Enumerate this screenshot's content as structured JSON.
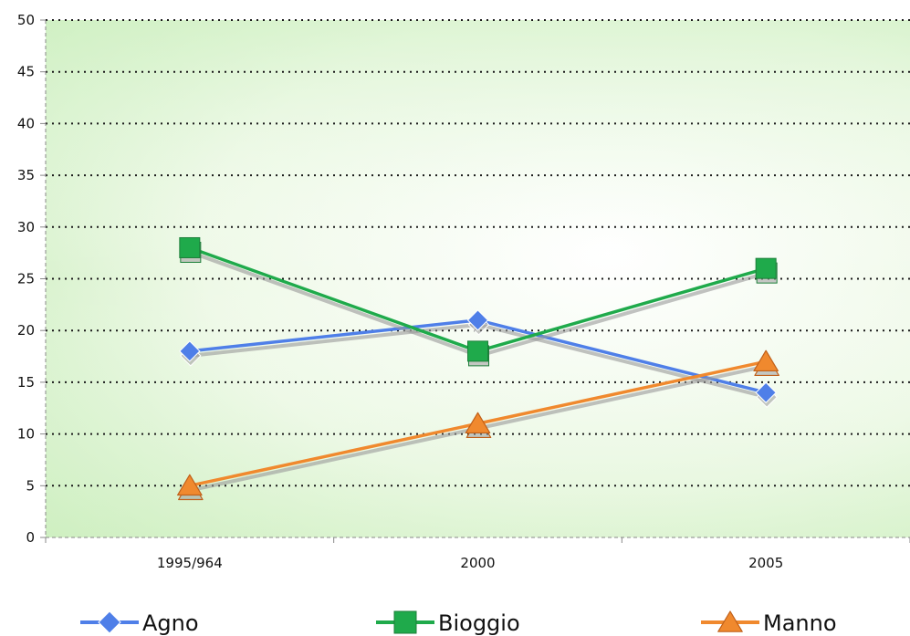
{
  "chart_data": {
    "type": "line",
    "categories": [
      "1995/964",
      "2000",
      "2005"
    ],
    "series": [
      {
        "name": "Agno",
        "values": [
          18,
          21,
          14
        ],
        "color": "#4f7fe8",
        "marker": "diamond"
      },
      {
        "name": "Bioggio",
        "values": [
          28,
          18,
          26
        ],
        "color": "#1faa4b",
        "marker": "square"
      },
      {
        "name": "Manno",
        "values": [
          5,
          11,
          17
        ],
        "color": "#f0892e",
        "marker": "triangle"
      }
    ],
    "ylim": [
      0,
      50
    ],
    "yticks": [
      0,
      5,
      10,
      15,
      20,
      25,
      30,
      35,
      40,
      45,
      50
    ],
    "grid": true,
    "legend_position": "bottom",
    "background": "light-green-gradient"
  }
}
